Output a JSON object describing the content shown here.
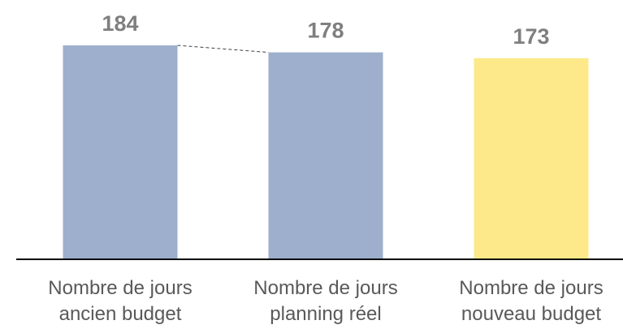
{
  "chart_data": {
    "type": "bar",
    "categories": [
      "Nombre de jours ancien budget",
      "Nombre de jours planning réel",
      "Nombre de jours nouveau budget"
    ],
    "values": [
      184,
      178,
      173
    ],
    "colors": [
      "#9dafcc",
      "#9dafcc",
      "#fde98a"
    ]
  }
}
